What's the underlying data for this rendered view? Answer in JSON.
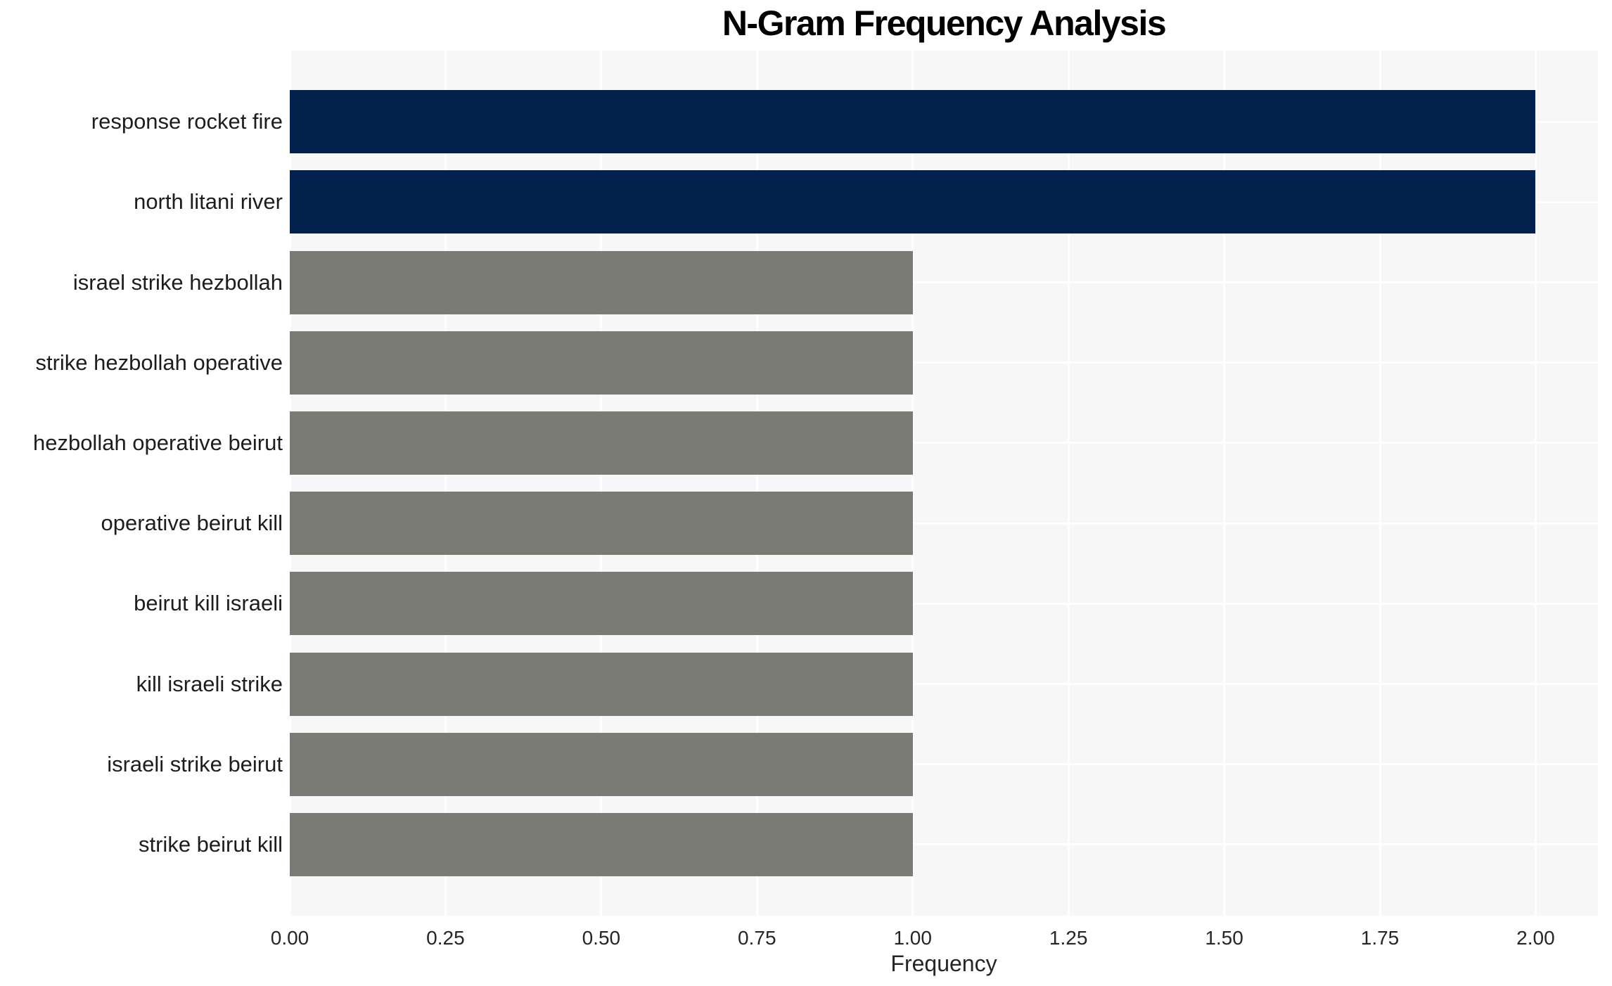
{
  "chart_data": {
    "type": "bar",
    "orientation": "horizontal",
    "title": "N-Gram Frequency Analysis",
    "xlabel": "Frequency",
    "ylabel": "",
    "categories": [
      "response rocket fire",
      "north litani river",
      "israel strike hezbollah",
      "strike hezbollah operative",
      "hezbollah operative beirut",
      "operative beirut kill",
      "beirut kill israeli",
      "kill israeli strike",
      "israeli strike beirut",
      "strike beirut kill"
    ],
    "values": [
      2,
      2,
      1,
      1,
      1,
      1,
      1,
      1,
      1,
      1
    ],
    "bar_colors": [
      "#02224d",
      "#02224d",
      "#7b7b75",
      "#7b7b75",
      "#7b7b75",
      "#7b7b75",
      "#7b7b75",
      "#7b7b75",
      "#7b7b75",
      "#7b7b75"
    ],
    "xlim": [
      0,
      2.1
    ],
    "xticks": [
      "0.00",
      "0.25",
      "0.50",
      "0.75",
      "1.00",
      "1.25",
      "1.50",
      "1.75",
      "2.00"
    ],
    "xtick_values": [
      0,
      0.25,
      0.5,
      0.75,
      1.0,
      1.25,
      1.5,
      1.75,
      2.0
    ],
    "grid": "both-white",
    "legend": "none",
    "colors": {
      "bar_frequency_2": "#02224d",
      "bar_frequency_1": "#7b7b75",
      "plot_background": "#f7f7f7",
      "gridline": "#ffffff",
      "tick_text": "#262626",
      "label_text": "#1d1d1d",
      "title_text": "#000000",
      "figure_background": "#ffffff"
    }
  }
}
